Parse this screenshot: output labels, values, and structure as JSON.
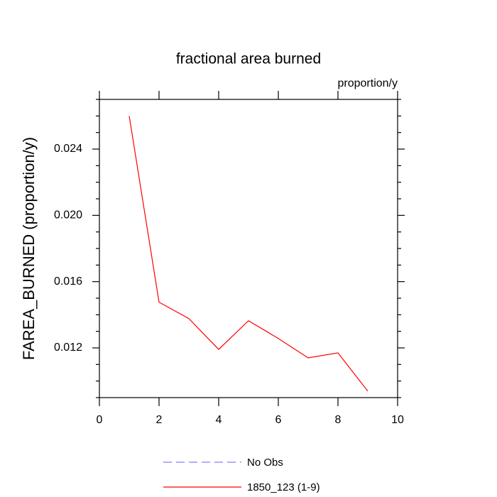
{
  "chart_data": {
    "type": "line",
    "title": "fractional area burned",
    "units": "proportion/y",
    "y_label": "FAREA_BURNED  (proportion/y)",
    "x": [
      1,
      2,
      3,
      4,
      5,
      6,
      7,
      8,
      9
    ],
    "series": [
      {
        "name": "No Obs",
        "color": "#8080ff",
        "dashed": true,
        "values": [
          null,
          null,
          null,
          null,
          null,
          null,
          null,
          null,
          null
        ]
      },
      {
        "name": "1850_123 (1-9)",
        "color": "#ff0000",
        "dashed": false,
        "values": [
          0.026,
          0.01476,
          0.01377,
          0.01191,
          0.01364,
          0.01257,
          0.0114,
          0.0117,
          0.00939
        ]
      }
    ],
    "xlim": [
      0,
      10
    ],
    "xticks": [
      0,
      2,
      4,
      6,
      8,
      10
    ],
    "ylim": [
      0.009,
      0.027
    ],
    "yticks": [
      {
        "value": 0.012,
        "label": "0.012"
      },
      {
        "value": 0.016,
        "label": "0.016"
      },
      {
        "value": 0.02,
        "label": "0.020"
      },
      {
        "value": 0.024,
        "label": "0.024"
      }
    ],
    "yminorticks": [
      0.009,
      0.01,
      0.011,
      0.013,
      0.014,
      0.015,
      0.017,
      0.018,
      0.019,
      0.021,
      0.022,
      0.023,
      0.025,
      0.026,
      0.027
    ]
  }
}
